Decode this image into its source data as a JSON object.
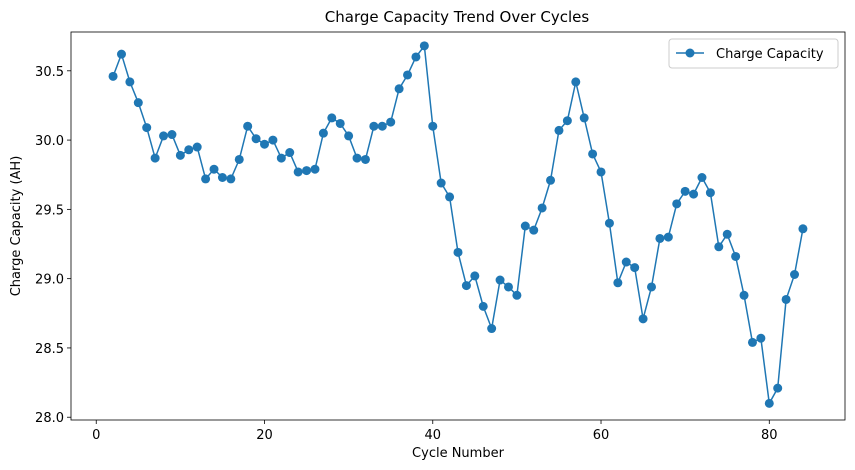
{
  "chart_data": {
    "type": "line",
    "title": "Charge Capacity Trend Over Cycles",
    "xlabel": "Cycle Number",
    "ylabel": "Charge Capacity (AH)",
    "xlim": [
      -3,
      89
    ],
    "ylim": [
      27.98,
      30.78
    ],
    "xticks": [
      0,
      20,
      40,
      60,
      80
    ],
    "yticks": [
      28.0,
      28.5,
      29.0,
      29.5,
      30.0,
      30.5
    ],
    "ytick_labels": [
      "28.0",
      "28.5",
      "29.0",
      "29.5",
      "30.0",
      "30.5"
    ],
    "grid": false,
    "legend_position": "upper right",
    "series": [
      {
        "name": "Charge Capacity",
        "color": "#1f77b4",
        "marker": "circle",
        "x": [
          2,
          3,
          4,
          5,
          6,
          7,
          8,
          9,
          10,
          11,
          12,
          13,
          14,
          15,
          16,
          17,
          18,
          19,
          20,
          21,
          22,
          23,
          24,
          25,
          26,
          27,
          28,
          29,
          30,
          31,
          32,
          33,
          34,
          35,
          36,
          37,
          38,
          39,
          40,
          41,
          42,
          43,
          44,
          45,
          46,
          47,
          48,
          49,
          50,
          51,
          52,
          53,
          54,
          55,
          56,
          57,
          58,
          59,
          60,
          61,
          62,
          63,
          64,
          65,
          66,
          67,
          68,
          69,
          70,
          71,
          72,
          73,
          74,
          75,
          76,
          77,
          78,
          79,
          80,
          81,
          82,
          83,
          84
        ],
        "y": [
          30.46,
          30.62,
          30.42,
          30.27,
          30.09,
          29.87,
          30.03,
          30.04,
          29.89,
          29.93,
          29.95,
          29.72,
          29.79,
          29.73,
          29.72,
          29.86,
          30.1,
          30.01,
          29.97,
          30.0,
          29.87,
          29.91,
          29.77,
          29.78,
          29.79,
          30.05,
          30.16,
          30.12,
          30.03,
          29.87,
          29.86,
          30.1,
          30.1,
          30.13,
          30.37,
          30.47,
          30.6,
          30.68,
          30.1,
          29.69,
          29.59,
          29.19,
          28.95,
          29.02,
          28.8,
          28.64,
          28.99,
          28.94,
          28.88,
          29.38,
          29.35,
          29.51,
          29.71,
          30.07,
          30.14,
          30.42,
          30.16,
          29.9,
          29.77,
          29.4,
          28.97,
          29.12,
          29.08,
          28.71,
          28.94,
          29.29,
          29.3,
          29.54,
          29.63,
          29.61,
          29.73,
          29.62,
          29.23,
          29.32,
          29.16,
          28.88,
          28.54,
          28.57,
          28.1,
          28.21,
          28.85,
          29.03,
          29.36
        ]
      }
    ]
  }
}
